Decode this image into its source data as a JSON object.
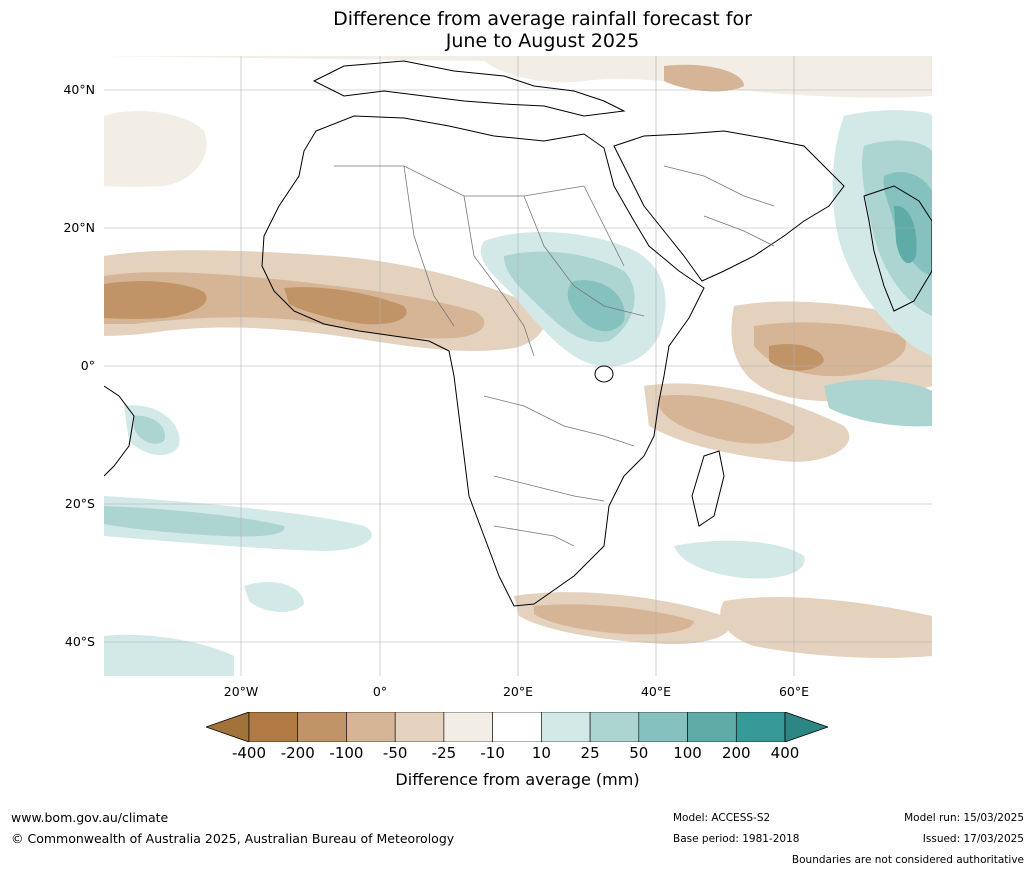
{
  "title_line1": "Difference from average rainfall forecast for",
  "title_line2": "June to August 2025",
  "lat_labels": [
    "40°N",
    "20°N",
    "0°",
    "20°S",
    "40°S"
  ],
  "lon_labels": [
    "20°W",
    "0°",
    "20°E",
    "40°E",
    "60°E"
  ],
  "legend": {
    "title": "Difference from average (mm)",
    "ticks": [
      "-400",
      "-200",
      "-100",
      "-50",
      "-25",
      "-10",
      "10",
      "25",
      "50",
      "100",
      "200",
      "400"
    ],
    "colors": [
      "#a2723b",
      "#b07a45",
      "#c19468",
      "#d5b595",
      "#e4d2bf",
      "#f2ede5",
      "#ffffff",
      "#d3e9e7",
      "#acd5d2",
      "#85c1be",
      "#5eaba8",
      "#369b98",
      "#2c8684"
    ]
  },
  "footer": {
    "url": "www.bom.gov.au/climate",
    "copyright": "© Commonwealth of Australia 2025, Australian Bureau of Meteorology",
    "model": "Model: ACCESS-S2",
    "base_period": "Base period: 1981-2018",
    "model_run": "Model run: 15/03/2025",
    "issued": "Issued: 17/03/2025",
    "disclaimer": "Boundaries are not considered authoritative"
  }
}
